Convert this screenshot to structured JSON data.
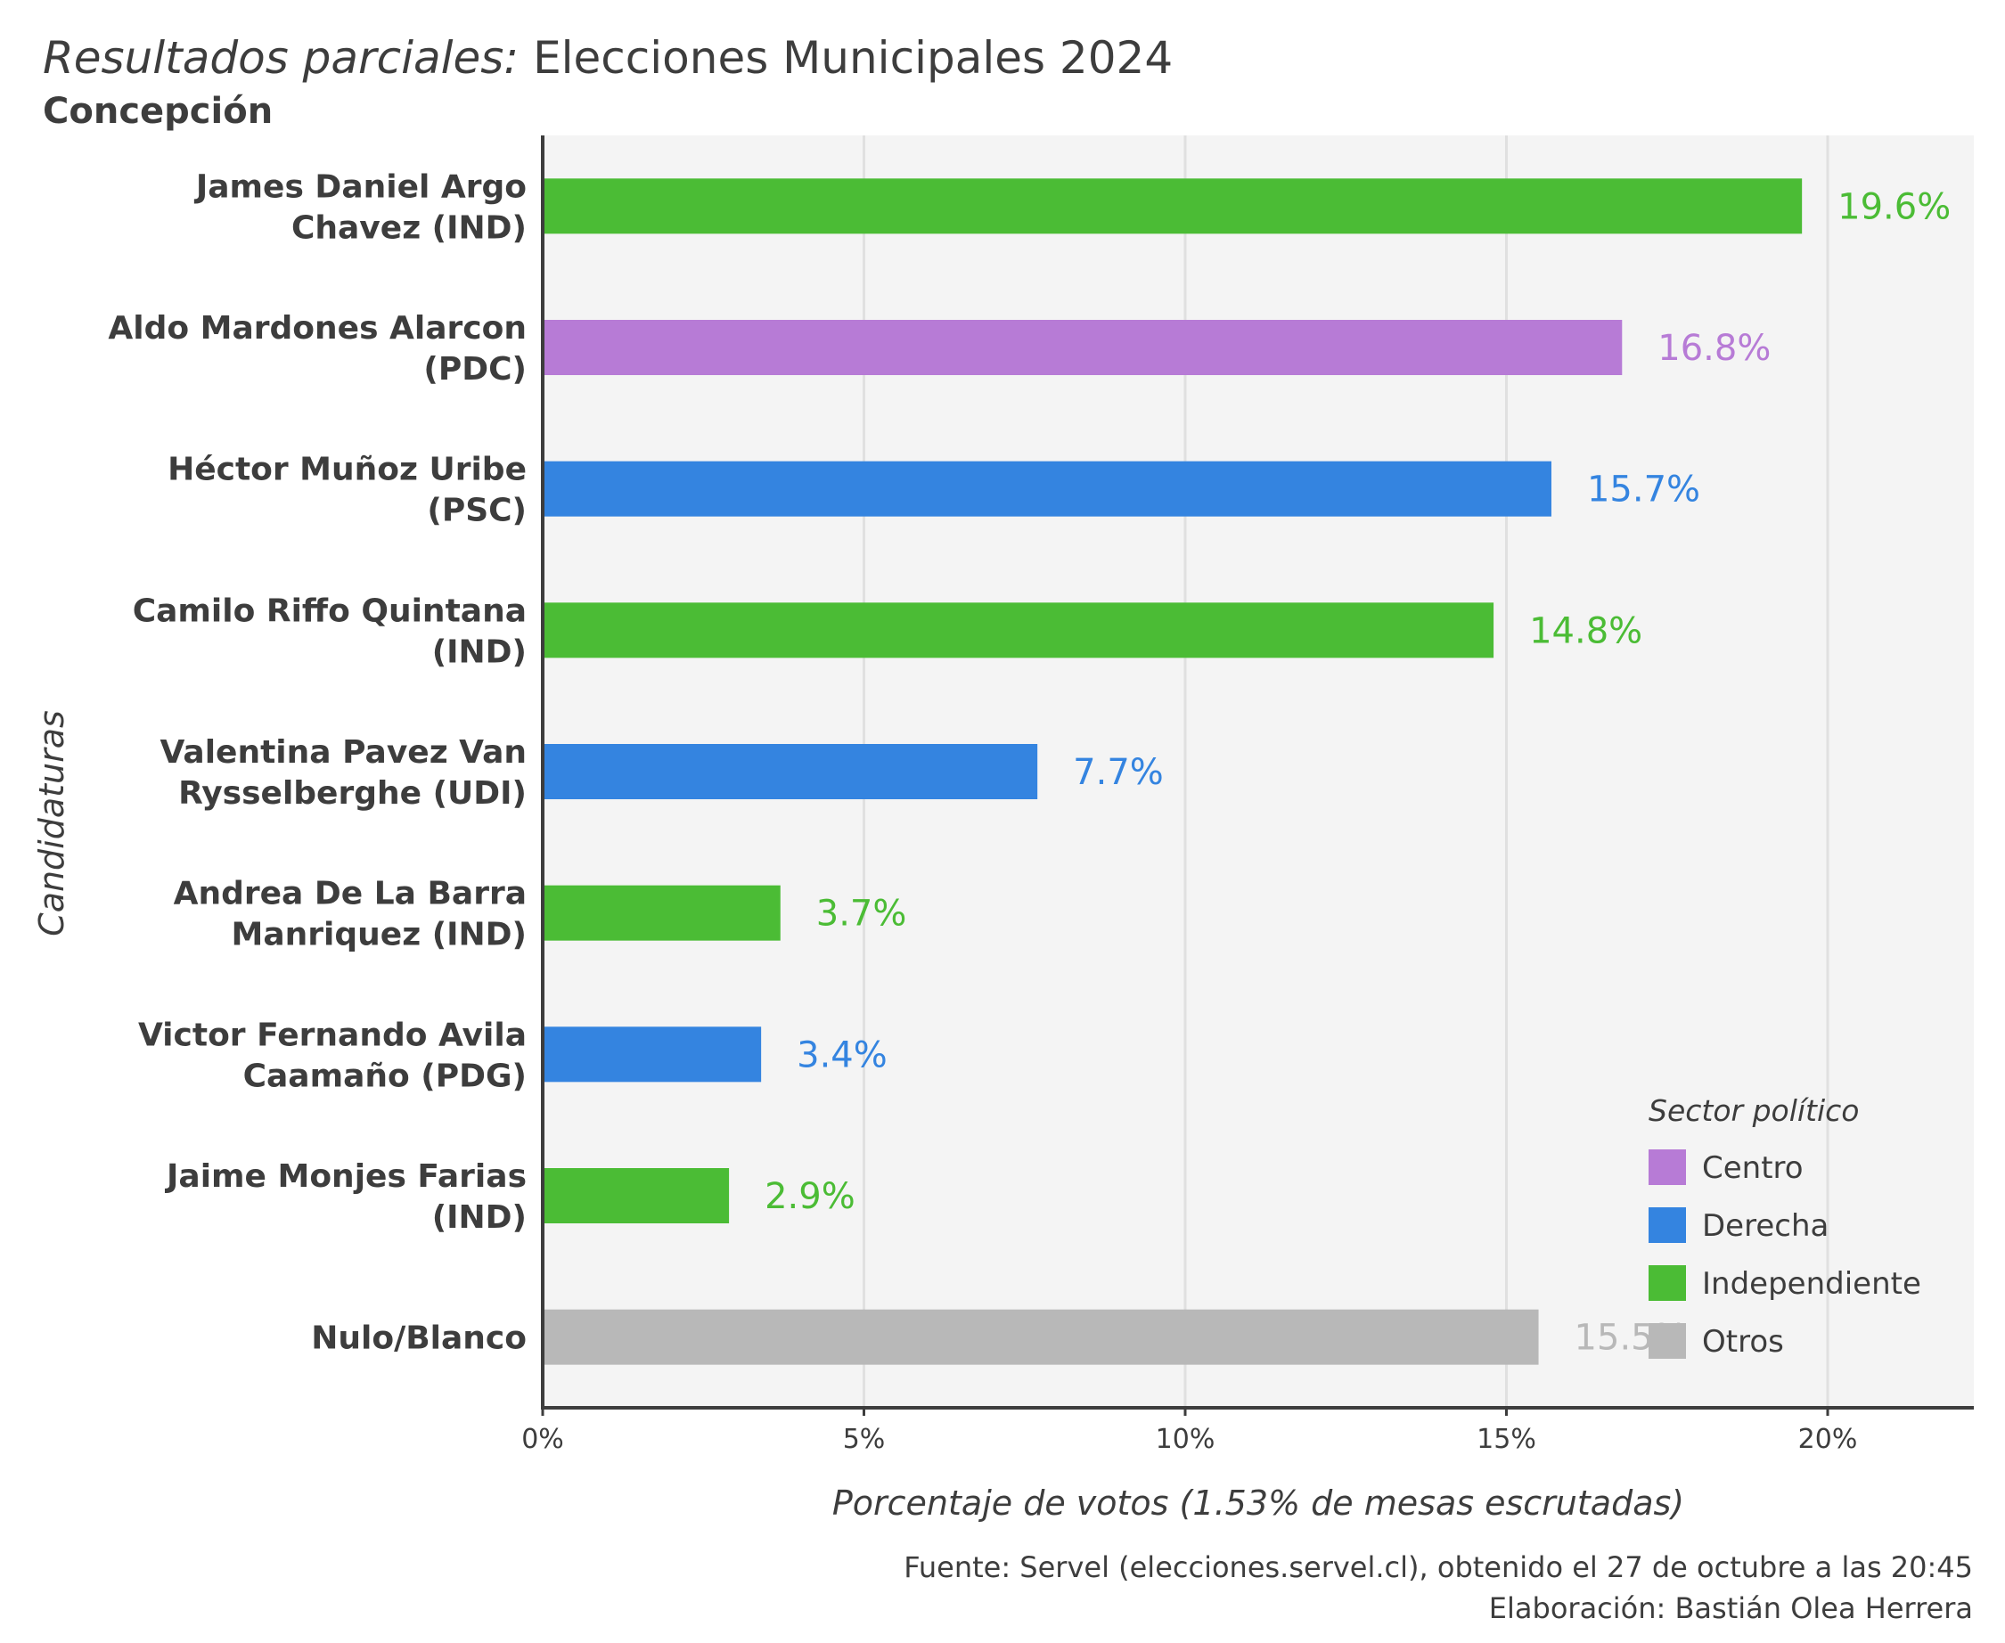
{
  "chart_data": {
    "type": "bar",
    "orientation": "horizontal",
    "title_italic": "Resultados parciales:",
    "title_rest": "Elecciones Municipales 2024",
    "subtitle": "Concepción",
    "xlabel": "Porcentaje de votos (1.53% de mesas escrutadas)",
    "ylabel": "Candidaturas",
    "xlim": [
      0,
      22.2
    ],
    "x_ticks": [
      0,
      5,
      10,
      15,
      20
    ],
    "x_tick_labels": [
      "0%",
      "5%",
      "10%",
      "15%",
      "20%"
    ],
    "grid": true,
    "legend_placement": "bottom-right",
    "legend_title": "Sector político",
    "sectors": [
      {
        "name": "Centro",
        "color": "#b77bd6"
      },
      {
        "name": "Derecha",
        "color": "#3484e0"
      },
      {
        "name": "Independiente",
        "color": "#4bbc35"
      },
      {
        "name": "Otros",
        "color": "#b8b8b8"
      }
    ],
    "bars": [
      {
        "label_lines": [
          "James Daniel Argo",
          "Chavez (IND)"
        ],
        "value": 19.6,
        "value_label": "19.6%",
        "sector": "Independiente"
      },
      {
        "label_lines": [
          "Aldo Mardones Alarcon",
          "(PDC)"
        ],
        "value": 16.8,
        "value_label": "16.8%",
        "sector": "Centro"
      },
      {
        "label_lines": [
          "Héctor Muñoz Uribe",
          "(PSC)"
        ],
        "value": 15.7,
        "value_label": "15.7%",
        "sector": "Derecha"
      },
      {
        "label_lines": [
          "Camilo Riffo Quintana",
          "(IND)"
        ],
        "value": 14.8,
        "value_label": "14.8%",
        "sector": "Independiente"
      },
      {
        "label_lines": [
          "Valentina Pavez Van",
          "Rysselberghe (UDI)"
        ],
        "value": 7.7,
        "value_label": "7.7%",
        "sector": "Derecha"
      },
      {
        "label_lines": [
          "Andrea De La Barra",
          "Manriquez (IND)"
        ],
        "value": 3.7,
        "value_label": "3.7%",
        "sector": "Independiente"
      },
      {
        "label_lines": [
          "Victor Fernando Avila",
          "Caamaño (PDG)"
        ],
        "value": 3.4,
        "value_label": "3.4%",
        "sector": "Derecha"
      },
      {
        "label_lines": [
          "Jaime Monjes Farias",
          "(IND)"
        ],
        "value": 2.9,
        "value_label": "2.9%",
        "sector": "Independiente"
      },
      {
        "label_lines": [
          "Nulo/Blanco"
        ],
        "value": 15.5,
        "value_label": "15.5%",
        "sector": "Otros"
      }
    ]
  },
  "caption": {
    "source": "Fuente: Servel (elecciones.servel.cl), obtenido el 27 de octubre a las 20:45",
    "author": "Elaboración: Bastián Olea Herrera"
  },
  "colors": {
    "panel_background": "#f4f4f4",
    "grid": "#e0e0e0",
    "axis": "#3d3d3d"
  }
}
